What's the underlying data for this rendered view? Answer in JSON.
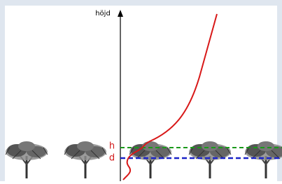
{
  "axis_label": "höjd",
  "levels": {
    "h": "h",
    "d": "d"
  }
}
